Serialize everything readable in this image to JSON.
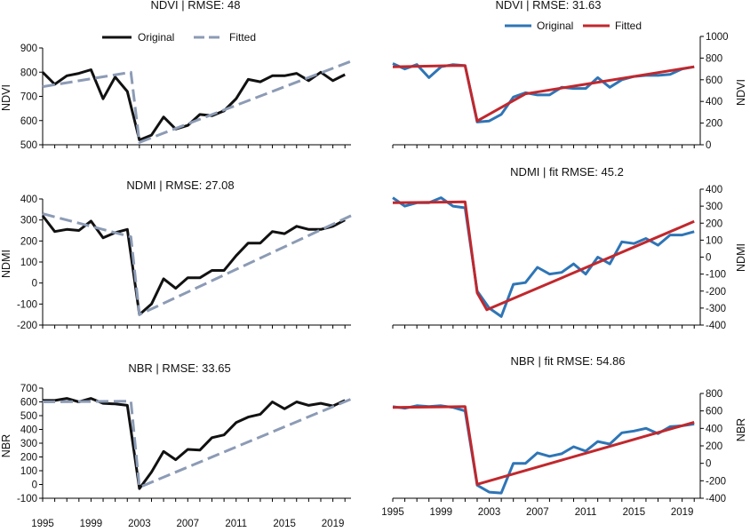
{
  "figure": {
    "x_axis_ticks": [
      "1995",
      "1999",
      "2003",
      "2007",
      "2011",
      "2015",
      "2019"
    ]
  },
  "chart_data": [
    {
      "id": "ndvi-left",
      "type": "line",
      "title": "NDVI | RMSE: 48",
      "ylabel": "NDVI",
      "ylim": [
        500,
        900
      ],
      "yticks": [
        500,
        600,
        700,
        800,
        900
      ],
      "yaxis_side": "left",
      "xlim": [
        1995,
        2020.5
      ],
      "grid": false,
      "legend": "top-center",
      "series": [
        {
          "name": "Original",
          "color": "#111111",
          "style": "solid",
          "x": [
            1995,
            1996,
            1997,
            1998,
            1999,
            2000,
            2001,
            2002,
            2003,
            2004,
            2005,
            2006,
            2007,
            2008,
            2009,
            2010,
            2011,
            2012,
            2013,
            2014,
            2015,
            2016,
            2017,
            2018,
            2019,
            2020
          ],
          "values": [
            800,
            750,
            785,
            795,
            810,
            690,
            780,
            720,
            520,
            540,
            615,
            565,
            580,
            625,
            620,
            640,
            690,
            770,
            760,
            785,
            785,
            795,
            765,
            800,
            765,
            790
          ]
        },
        {
          "name": "Fitted",
          "color": "#8c9bb5",
          "style": "dashed",
          "x": [
            1995,
            2002.3,
            2003,
            2020.5
          ],
          "values": [
            740,
            800,
            510,
            845
          ]
        }
      ]
    },
    {
      "id": "ndvi-right",
      "type": "line",
      "title": "NDVI | RMSE: 31.63",
      "ylabel": "NDVI",
      "ylim": [
        0,
        1000
      ],
      "yticks": [
        0,
        200,
        400,
        600,
        800,
        1000
      ],
      "yaxis_side": "right",
      "xlim": [
        1995,
        2020.5
      ],
      "grid": false,
      "legend": "top-center",
      "series": [
        {
          "name": "Original",
          "color": "#2e75b6",
          "style": "solid",
          "x": [
            1995,
            1996,
            1997,
            1998,
            1999,
            2000,
            2001,
            2002,
            2003,
            2004,
            2005,
            2006,
            2007,
            2008,
            2009,
            2010,
            2011,
            2012,
            2013,
            2014,
            2015,
            2016,
            2017,
            2018,
            2019,
            2020
          ],
          "values": [
            750,
            700,
            740,
            620,
            720,
            740,
            730,
            210,
            220,
            280,
            440,
            480,
            460,
            460,
            530,
            520,
            520,
            620,
            530,
            600,
            630,
            640,
            640,
            650,
            700,
            720
          ]
        },
        {
          "name": "Fitted",
          "color": "#c0282d",
          "style": "solid",
          "x": [
            1995,
            2000,
            2001,
            2002,
            2006,
            2020
          ],
          "values": [
            720,
            730,
            730,
            220,
            470,
            720
          ]
        }
      ]
    },
    {
      "id": "ndmi-left",
      "type": "line",
      "title": "NDMI | RMSE: 27.08",
      "ylabel": "NDMI",
      "ylim": [
        -200,
        400
      ],
      "yticks": [
        -200,
        -100,
        0,
        100,
        200,
        300,
        400
      ],
      "yaxis_side": "left",
      "xlim": [
        1995,
        2020.5
      ],
      "grid": false,
      "series": [
        {
          "name": "Original",
          "color": "#111111",
          "style": "solid",
          "x": [
            1995,
            1996,
            1997,
            1998,
            1999,
            2000,
            2001,
            2002,
            2003,
            2004,
            2005,
            2006,
            2007,
            2008,
            2009,
            2010,
            2011,
            2012,
            2013,
            2014,
            2015,
            2016,
            2017,
            2018,
            2019,
            2020
          ],
          "values": [
            320,
            245,
            255,
            250,
            295,
            215,
            240,
            255,
            -150,
            -100,
            20,
            -25,
            25,
            25,
            60,
            60,
            130,
            190,
            190,
            245,
            235,
            270,
            255,
            255,
            270,
            300
          ]
        },
        {
          "name": "Fitted",
          "color": "#8c9bb5",
          "style": "dashed",
          "x": [
            1995,
            2002.3,
            2003,
            2020.5
          ],
          "values": [
            330,
            220,
            -150,
            320
          ]
        }
      ]
    },
    {
      "id": "ndmi-right",
      "type": "line",
      "title": "NDMI | fit RMSE: 45.2",
      "ylabel": "NDMI",
      "ylim": [
        -400,
        400
      ],
      "yticks": [
        -400,
        -300,
        -200,
        -100,
        0,
        100,
        200,
        300,
        400
      ],
      "yaxis_side": "right",
      "xlim": [
        1995,
        2020.5
      ],
      "grid": false,
      "series": [
        {
          "name": "Original",
          "color": "#2e75b6",
          "style": "solid",
          "x": [
            1995,
            1996,
            1997,
            1998,
            1999,
            2000,
            2001,
            2002,
            2003,
            2004,
            2005,
            2006,
            2007,
            2008,
            2009,
            2010,
            2011,
            2012,
            2013,
            2014,
            2015,
            2016,
            2017,
            2018,
            2019,
            2020
          ],
          "values": [
            350,
            300,
            320,
            320,
            350,
            300,
            290,
            -200,
            -300,
            -350,
            -160,
            -150,
            -60,
            -100,
            -90,
            -40,
            -100,
            0,
            -40,
            90,
            80,
            110,
            70,
            130,
            130,
            150
          ]
        },
        {
          "name": "Fitted",
          "color": "#c0282d",
          "style": "solid",
          "x": [
            1995,
            2001,
            2002,
            2002.8,
            2020
          ],
          "values": [
            320,
            325,
            -210,
            -310,
            210
          ]
        }
      ]
    },
    {
      "id": "nbr-left",
      "type": "line",
      "title": "NBR | RMSE: 33.65",
      "ylabel": "NBR",
      "ylim": [
        -100,
        700
      ],
      "yticks": [
        -100,
        0,
        100,
        200,
        300,
        400,
        500,
        600,
        700
      ],
      "yaxis_side": "left",
      "xlim": [
        1995,
        2020.5
      ],
      "grid": false,
      "series": [
        {
          "name": "Original",
          "color": "#111111",
          "style": "solid",
          "x": [
            1995,
            1996,
            1997,
            1998,
            1999,
            2000,
            2001,
            2002,
            2003,
            2004,
            2005,
            2006,
            2007,
            2008,
            2009,
            2010,
            2011,
            2012,
            2013,
            2014,
            2015,
            2016,
            2017,
            2018,
            2019,
            2020
          ],
          "values": [
            610,
            610,
            625,
            600,
            625,
            590,
            585,
            575,
            -30,
            90,
            240,
            180,
            255,
            250,
            340,
            360,
            450,
            490,
            510,
            600,
            550,
            600,
            575,
            590,
            570,
            610
          ]
        },
        {
          "name": "Fitted",
          "color": "#8c9bb5",
          "style": "dashed",
          "x": [
            1995,
            2002.3,
            2003,
            2020.5
          ],
          "values": [
            600,
            605,
            -20,
            620
          ]
        }
      ]
    },
    {
      "id": "nbr-right",
      "type": "line",
      "title": "NBR | fit RMSE: 54.86",
      "ylabel": "NBR",
      "ylim": [
        -400,
        800
      ],
      "yticks": [
        -400,
        -200,
        0,
        200,
        400,
        600,
        800
      ],
      "yaxis_side": "right",
      "xlim": [
        1995,
        2020.5
      ],
      "grid": false,
      "series": [
        {
          "name": "Original",
          "color": "#2e75b6",
          "style": "solid",
          "x": [
            1995,
            1996,
            1997,
            1998,
            1999,
            2000,
            2001,
            2002,
            2003,
            2004,
            2005,
            2006,
            2007,
            2008,
            2009,
            2010,
            2011,
            2012,
            2013,
            2014,
            2015,
            2016,
            2017,
            2018,
            2019,
            2020
          ],
          "values": [
            650,
            630,
            660,
            650,
            660,
            640,
            600,
            -250,
            -330,
            -340,
            0,
            0,
            120,
            80,
            110,
            190,
            140,
            250,
            220,
            350,
            370,
            400,
            340,
            420,
            430,
            450
          ]
        },
        {
          "name": "Fitted",
          "color": "#c0282d",
          "style": "solid",
          "x": [
            1995,
            2001,
            2002,
            2020
          ],
          "values": [
            640,
            650,
            -240,
            470
          ]
        }
      ]
    }
  ]
}
